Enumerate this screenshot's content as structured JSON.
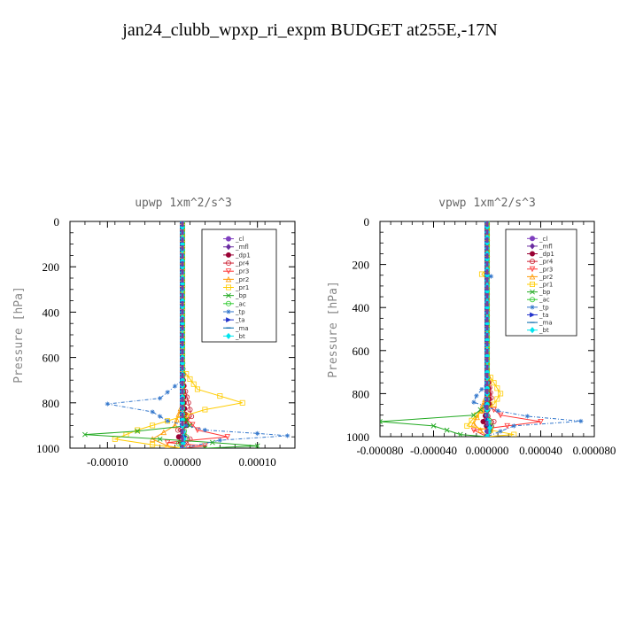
{
  "title": "jan24_clubb_wpxp_ri_expm  BUDGET at255E,-17N",
  "chart_data": [
    {
      "type": "line",
      "title": "upwp   1xm^2/s^3",
      "ylabel": "Pressure [hPa]",
      "ylim": [
        1000,
        0
      ],
      "yticks": [
        0,
        200,
        400,
        600,
        800,
        1000
      ],
      "xlim": [
        -0.00015,
        0.00015
      ],
      "xticks": [
        -0.0001,
        0,
        0.0001
      ],
      "xtick_labels": [
        "-0.00010",
        "0.00000",
        "0.00010"
      ],
      "legend_position": "top-right",
      "series": [
        {
          "name": "_cl",
          "color": "#7f3fbf",
          "marker": "circle",
          "points": [
            [
              0,
              0
            ],
            [
              0,
              200
            ],
            [
              0,
              400
            ],
            [
              0,
              600
            ],
            [
              0,
              800
            ],
            [
              0,
              900
            ],
            [
              0,
              1000
            ]
          ]
        },
        {
          "name": "_mfl",
          "color": "#6a2ca0",
          "marker": "diamond",
          "points": [
            [
              0,
              0
            ],
            [
              0,
              200
            ],
            [
              0,
              400
            ],
            [
              0,
              600
            ],
            [
              0,
              800
            ],
            [
              0,
              950
            ],
            [
              0,
              1000
            ]
          ]
        },
        {
          "name": "_dp1",
          "color": "#990033",
          "marker": "circle",
          "points": [
            [
              0,
              0
            ],
            [
              0,
              600
            ],
            [
              2e-06,
              800
            ],
            [
              5e-06,
              900
            ],
            [
              -5e-06,
              950
            ],
            [
              0,
              1000
            ]
          ]
        },
        {
          "name": "_pr4",
          "color": "#cc2233",
          "marker": "circle-open",
          "points": [
            [
              0,
              0
            ],
            [
              0,
              700
            ],
            [
              8e-06,
              800
            ],
            [
              1.2e-05,
              860
            ],
            [
              -6e-06,
              920
            ],
            [
              1e-05,
              960
            ],
            [
              0,
              1000
            ]
          ]
        },
        {
          "name": "_pr3",
          "color": "#ff3333",
          "marker": "triangle-down",
          "points": [
            [
              0,
              0
            ],
            [
              0,
              850
            ],
            [
              2e-05,
              920
            ],
            [
              6e-05,
              950
            ],
            [
              -2e-05,
              975
            ],
            [
              3e-05,
              990
            ],
            [
              0,
              1000
            ]
          ]
        },
        {
          "name": "_pr2",
          "color": "#ff9900",
          "marker": "triangle-up",
          "points": [
            [
              0,
              0
            ],
            [
              0,
              800
            ],
            [
              -1e-05,
              900
            ],
            [
              -4e-05,
              960
            ],
            [
              -2e-05,
              990
            ],
            [
              0,
              1000
            ]
          ]
        },
        {
          "name": "_pr1",
          "color": "#ffcc00",
          "marker": "square-open",
          "points": [
            [
              0,
              0
            ],
            [
              0,
              650
            ],
            [
              2e-05,
              740
            ],
            [
              8e-05,
              800
            ],
            [
              3e-05,
              830
            ],
            [
              -2e-05,
              880
            ],
            [
              -6e-05,
              920
            ],
            [
              -9e-05,
              960
            ],
            [
              -4e-05,
              985
            ],
            [
              0,
              1000
            ]
          ]
        },
        {
          "name": "_bp",
          "color": "#22aa22",
          "marker": "x",
          "points": [
            [
              0,
              0
            ],
            [
              0,
              850
            ],
            [
              1e-05,
              900
            ],
            [
              -6e-05,
              925
            ],
            [
              -0.00013,
              940
            ],
            [
              -3e-05,
              960
            ],
            [
              4e-05,
              975
            ],
            [
              0.0001,
              990
            ],
            [
              3e-05,
              1000
            ]
          ]
        },
        {
          "name": "_ac",
          "color": "#33cc33",
          "marker": "circle-open",
          "points": [
            [
              0,
              0
            ],
            [
              0,
              900
            ],
            [
              5e-06,
              950
            ],
            [
              -5e-06,
              980
            ],
            [
              0,
              1000
            ]
          ]
        },
        {
          "name": "_tp",
          "color": "#3377cc",
          "marker": "star",
          "points": [
            [
              0,
              0
            ],
            [
              0,
              700
            ],
            [
              -3e-05,
              780
            ],
            [
              -0.0001,
              805
            ],
            [
              -4e-05,
              840
            ],
            [
              -2e-05,
              880
            ],
            [
              3e-05,
              920
            ],
            [
              0.0001,
              935
            ],
            [
              0.00014,
              945
            ],
            [
              5e-05,
              965
            ],
            [
              0,
              1000
            ]
          ]
        },
        {
          "name": "_ta",
          "color": "#2233cc",
          "marker": "arrow",
          "points": [
            [
              0,
              0
            ],
            [
              0,
              900
            ],
            [
              3e-06,
              950
            ],
            [
              0,
              1000
            ]
          ]
        },
        {
          "name": "_ma",
          "color": "#0066aa",
          "marker": "dash",
          "points": [
            [
              0,
              0
            ],
            [
              0,
              500
            ],
            [
              0,
              1000
            ]
          ]
        },
        {
          "name": "_bt",
          "color": "#00e5ee",
          "marker": "diamond-filled",
          "points": [
            [
              0,
              0
            ],
            [
              0,
              900
            ],
            [
              2e-06,
              960
            ],
            [
              0,
              1000
            ]
          ]
        }
      ]
    },
    {
      "type": "line",
      "title": "vpwp   1xm^2/s^3",
      "ylabel": "Pressure [hPa]",
      "ylim": [
        1000,
        0
      ],
      "yticks": [
        0,
        200,
        400,
        600,
        800,
        1000
      ],
      "xlim": [
        -8e-05,
        8e-05
      ],
      "xticks": [
        -8e-05,
        -4e-05,
        0,
        4e-05,
        8e-05
      ],
      "xtick_labels": [
        "-0.000080",
        "-0.000040",
        "0.000000",
        "0.000040",
        "0.000080"
      ],
      "legend_position": "top-right",
      "series": [
        {
          "name": "_cl",
          "color": "#7f3fbf",
          "marker": "circle",
          "points": [
            [
              0,
              0
            ],
            [
              0,
              200
            ],
            [
              0,
              400
            ],
            [
              0,
              600
            ],
            [
              0,
              800
            ],
            [
              0,
              950
            ],
            [
              0,
              1000
            ]
          ]
        },
        {
          "name": "_mfl",
          "color": "#6a2ca0",
          "marker": "diamond",
          "points": [
            [
              0,
              0
            ],
            [
              0,
              400
            ],
            [
              0,
              800
            ],
            [
              0,
              1000
            ]
          ]
        },
        {
          "name": "_dp1",
          "color": "#990033",
          "marker": "circle",
          "points": [
            [
              0,
              0
            ],
            [
              0,
              700
            ],
            [
              2e-06,
              850
            ],
            [
              -3e-06,
              930
            ],
            [
              2e-06,
              970
            ],
            [
              0,
              1000
            ]
          ]
        },
        {
          "name": "_pr4",
          "color": "#cc2233",
          "marker": "circle-open",
          "points": [
            [
              0,
              0
            ],
            [
              0,
              700
            ],
            [
              3e-06,
              820
            ],
            [
              -4e-06,
              880
            ],
            [
              5e-06,
              930
            ],
            [
              0,
              1000
            ]
          ]
        },
        {
          "name": "_pr3",
          "color": "#ff3333",
          "marker": "triangle-down",
          "points": [
            [
              0,
              0
            ],
            [
              0,
              850
            ],
            [
              1e-05,
              900
            ],
            [
              4e-05,
              930
            ],
            [
              1.5e-05,
              950
            ],
            [
              -1e-05,
              970
            ],
            [
              0,
              1000
            ]
          ]
        },
        {
          "name": "_pr2",
          "color": "#ff9900",
          "marker": "triangle-up",
          "points": [
            [
              0,
              0
            ],
            [
              0,
              800
            ],
            [
              -5e-06,
              880
            ],
            [
              -1e-05,
              940
            ],
            [
              0,
              1000
            ]
          ]
        },
        {
          "name": "_pr1",
          "color": "#ffcc00",
          "marker": "square-open",
          "points": [
            [
              0,
              0
            ],
            [
              0,
              220
            ],
            [
              -4e-06,
              245
            ],
            [
              0,
              270
            ],
            [
              0,
              700
            ],
            [
              1e-05,
              800
            ],
            [
              5e-06,
              850
            ],
            [
              -8e-06,
              900
            ],
            [
              -1.5e-05,
              950
            ],
            [
              2e-05,
              990
            ],
            [
              0,
              1000
            ]
          ]
        },
        {
          "name": "_bp",
          "color": "#22aa22",
          "marker": "x",
          "points": [
            [
              0,
              0
            ],
            [
              0,
              850
            ],
            [
              -1e-05,
              900
            ],
            [
              -8e-05,
              930
            ],
            [
              -4e-05,
              950
            ],
            [
              -2e-05,
              990
            ],
            [
              0,
              1000
            ]
          ]
        },
        {
          "name": "_ac",
          "color": "#33cc33",
          "marker": "circle-open",
          "points": [
            [
              0,
              0
            ],
            [
              0,
              900
            ],
            [
              3e-06,
              950
            ],
            [
              0,
              1000
            ]
          ]
        },
        {
          "name": "_tp",
          "color": "#3377cc",
          "marker": "star",
          "points": [
            [
              0,
              0
            ],
            [
              0,
              245
            ],
            [
              3e-06,
              255
            ],
            [
              0,
              265
            ],
            [
              0,
              750
            ],
            [
              -8e-06,
              810
            ],
            [
              -1e-05,
              840
            ],
            [
              8e-06,
              880
            ],
            [
              3e-05,
              905
            ],
            [
              7e-05,
              928
            ],
            [
              2e-05,
              950
            ],
            [
              0,
              1000
            ]
          ]
        },
        {
          "name": "_ta",
          "color": "#2233cc",
          "marker": "arrow",
          "points": [
            [
              0,
              0
            ],
            [
              0,
              900
            ],
            [
              2e-06,
              950
            ],
            [
              0,
              1000
            ]
          ]
        },
        {
          "name": "_ma",
          "color": "#0066aa",
          "marker": "dash",
          "points": [
            [
              0,
              0
            ],
            [
              0,
              500
            ],
            [
              0,
              1000
            ]
          ]
        },
        {
          "name": "_bt",
          "color": "#00e5ee",
          "marker": "diamond-filled",
          "points": [
            [
              0,
              0
            ],
            [
              0,
              900
            ],
            [
              2e-06,
              960
            ],
            [
              0,
              1000
            ]
          ]
        }
      ]
    }
  ]
}
